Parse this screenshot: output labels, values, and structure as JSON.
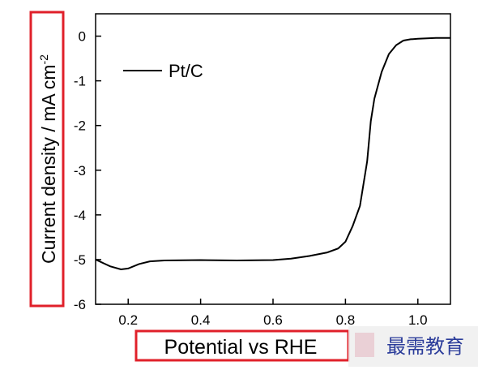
{
  "chart_data": {
    "type": "line",
    "ylabel": "Current density / mA cm",
    "ylabel_sup": "-2",
    "xlabel": "Potential vs RHE",
    "watermark": "最需教育",
    "x": [
      0.11,
      0.15,
      0.18,
      0.2,
      0.23,
      0.26,
      0.3,
      0.4,
      0.5,
      0.6,
      0.65,
      0.7,
      0.75,
      0.78,
      0.8,
      0.82,
      0.84,
      0.86,
      0.87,
      0.88,
      0.9,
      0.92,
      0.94,
      0.96,
      0.98,
      1.0,
      1.05,
      1.09
    ],
    "series": [
      {
        "name": "Pt/C",
        "color": "#000000",
        "values": [
          -5.0,
          -5.15,
          -5.22,
          -5.2,
          -5.1,
          -5.04,
          -5.02,
          -5.01,
          -5.02,
          -5.01,
          -4.98,
          -4.92,
          -4.84,
          -4.75,
          -4.6,
          -4.25,
          -3.8,
          -2.8,
          -1.9,
          -1.4,
          -0.8,
          -0.4,
          -0.2,
          -0.1,
          -0.07,
          -0.06,
          -0.04,
          -0.04
        ]
      }
    ],
    "xlim": [
      0.11,
      1.09
    ],
    "ylim": [
      -6,
      0.5
    ],
    "xticks": [
      0.2,
      0.4,
      0.6,
      0.8,
      {
        "value": 1,
        "label": "1.0"
      }
    ],
    "yticks": [
      0,
      -1,
      -2,
      -3,
      -4,
      -5,
      -6
    ],
    "legend": "top-left",
    "grid": false
  }
}
